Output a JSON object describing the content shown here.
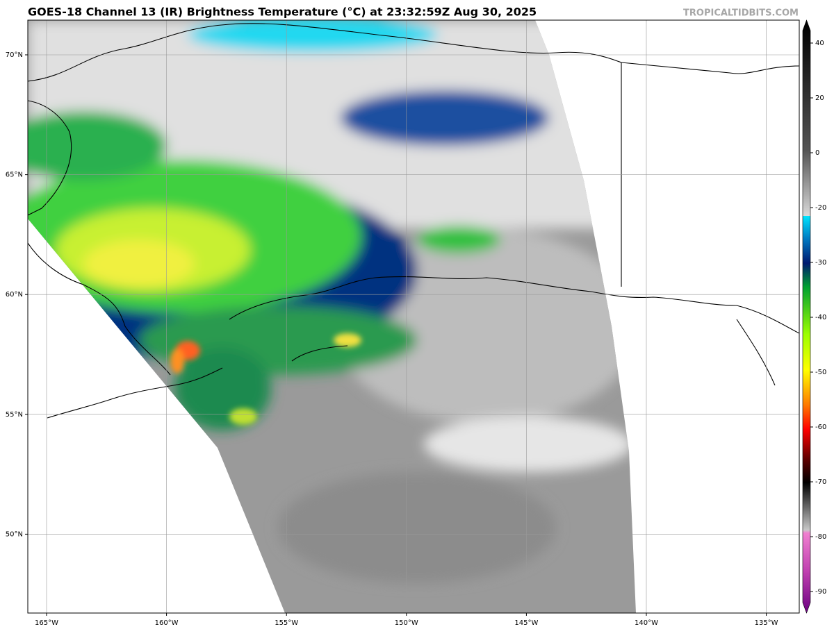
{
  "header": {
    "title": "GOES-18 Channel 13 (IR) Brightness Temperature (°C) at 23:32:59Z Aug 30, 2025",
    "site": "TROPICALTIDBITS.COM"
  },
  "map": {
    "lat_labels": [
      "70°N",
      "65°N",
      "60°N",
      "55°N",
      "50°N"
    ],
    "lon_labels": [
      "165°W",
      "160°W",
      "155°W",
      "150°W",
      "145°W",
      "140°W",
      "135°W"
    ]
  },
  "colorbar": {
    "ticks": [
      40,
      20,
      0,
      -20,
      -30,
      -40,
      -50,
      -60,
      -70,
      -80,
      -90
    ]
  }
}
